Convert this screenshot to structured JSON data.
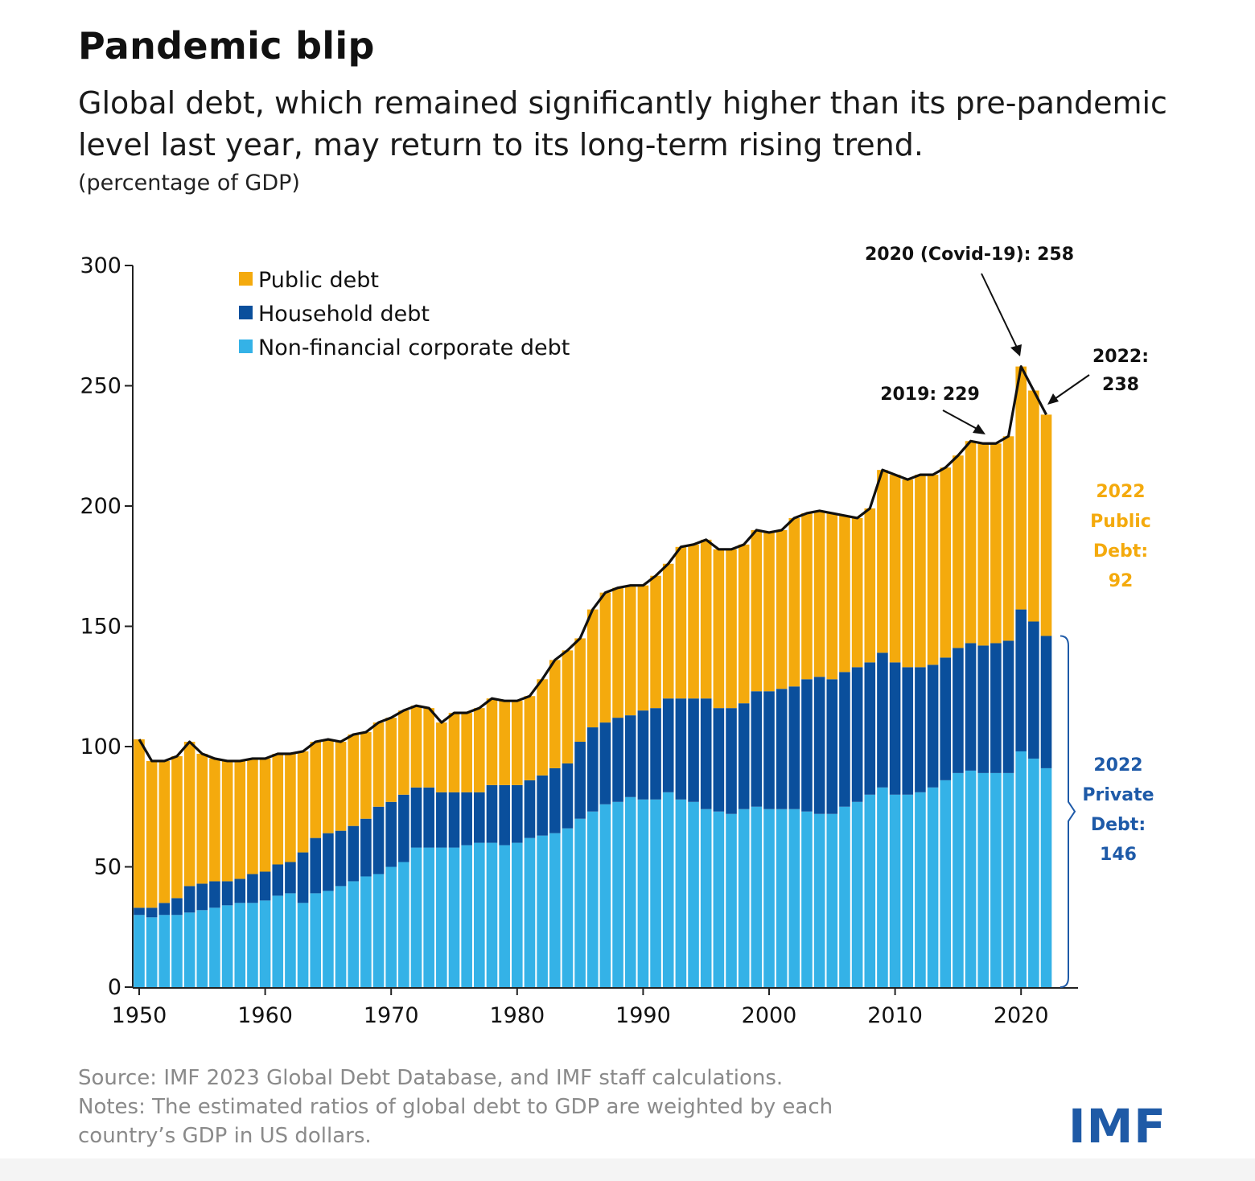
{
  "title": "Pandemic blip",
  "subtitle": "Global debt, which remained significantly higher than its pre-pandemic level last year, may return to its long-term rising trend.",
  "units": "(percentage of GDP)",
  "footer": {
    "source": "Source: IMF 2023 Global Debt Database, and IMF staff calculations.",
    "notes": "Notes: The estimated ratios of global debt to GDP are weighted by each country’s GDP in US dollars."
  },
  "logo": "IMF",
  "colors": {
    "public": "#f4aa0d",
    "household": "#0a4f9c",
    "corporate": "#34b2e7",
    "total_line": "#111111",
    "private_text": "#1e5aa8"
  },
  "annotations": {
    "covid": "2020 (Covid-19): 258",
    "y2019": "2019: 229",
    "y2022_line1": "2022:",
    "y2022_line2": "238",
    "public_lines": [
      "2022",
      "Public",
      "Debt:",
      "92"
    ],
    "private_lines": [
      "2022",
      "Private",
      "Debt:",
      "146"
    ]
  },
  "chart_data": {
    "type": "bar",
    "stacked": true,
    "ylim": [
      0,
      300
    ],
    "yticks": [
      0,
      50,
      100,
      150,
      200,
      250,
      300
    ],
    "xticks": [
      1950,
      1960,
      1970,
      1980,
      1990,
      2000,
      2010,
      2020
    ],
    "legend_position": "top-left",
    "grid": false,
    "x": [
      1950,
      1951,
      1952,
      1953,
      1954,
      1955,
      1956,
      1957,
      1958,
      1959,
      1960,
      1961,
      1962,
      1963,
      1964,
      1965,
      1966,
      1967,
      1968,
      1969,
      1970,
      1971,
      1972,
      1973,
      1974,
      1975,
      1976,
      1977,
      1978,
      1979,
      1980,
      1981,
      1982,
      1983,
      1984,
      1985,
      1986,
      1987,
      1988,
      1989,
      1990,
      1991,
      1992,
      1993,
      1994,
      1995,
      1996,
      1997,
      1998,
      1999,
      2000,
      2001,
      2002,
      2003,
      2004,
      2005,
      2006,
      2007,
      2008,
      2009,
      2010,
      2011,
      2012,
      2013,
      2014,
      2015,
      2016,
      2017,
      2018,
      2019,
      2020,
      2021,
      2022
    ],
    "series": [
      {
        "name": "Non-financial corporate debt",
        "values": [
          30,
          29,
          30,
          30,
          31,
          32,
          33,
          34,
          35,
          35,
          36,
          38,
          39,
          35,
          39,
          40,
          42,
          44,
          46,
          47,
          50,
          52,
          58,
          58,
          58,
          58,
          59,
          60,
          60,
          59,
          60,
          62,
          63,
          64,
          66,
          70,
          73,
          76,
          77,
          79,
          78,
          78,
          81,
          78,
          77,
          74,
          73,
          72,
          74,
          75,
          74,
          74,
          74,
          73,
          72,
          72,
          75,
          77,
          80,
          83,
          80,
          80,
          81,
          83,
          86,
          89,
          90,
          89,
          89,
          89,
          98,
          95,
          91
        ]
      },
      {
        "name": "Household debt",
        "values": [
          3,
          4,
          5,
          7,
          11,
          11,
          11,
          10,
          10,
          12,
          12,
          13,
          13,
          21,
          23,
          24,
          23,
          23,
          24,
          28,
          27,
          28,
          25,
          25,
          23,
          23,
          22,
          21,
          24,
          25,
          24,
          24,
          25,
          27,
          27,
          32,
          35,
          34,
          35,
          34,
          37,
          38,
          39,
          42,
          43,
          46,
          43,
          44,
          44,
          48,
          49,
          50,
          51,
          55,
          57,
          56,
          56,
          56,
          55,
          56,
          55,
          53,
          52,
          51,
          51,
          52,
          53,
          53,
          54,
          55,
          59,
          57,
          55
        ]
      },
      {
        "name": "Public debt",
        "values": [
          70,
          61,
          59,
          59,
          60,
          54,
          51,
          50,
          49,
          48,
          47,
          46,
          45,
          42,
          40,
          39,
          37,
          38,
          36,
          35,
          35,
          35,
          34,
          33,
          29,
          33,
          33,
          35,
          36,
          35,
          35,
          35,
          40,
          45,
          47,
          43,
          49,
          54,
          54,
          54,
          52,
          55,
          56,
          63,
          64,
          66,
          66,
          66,
          66,
          67,
          66,
          66,
          70,
          69,
          69,
          69,
          65,
          62,
          64,
          76,
          78,
          78,
          80,
          79,
          79,
          80,
          84,
          84,
          83,
          85,
          101,
          96,
          92
        ]
      }
    ],
    "total": [
      103,
      94,
      94,
      96,
      102,
      97,
      95,
      94,
      94,
      95,
      95,
      97,
      97,
      98,
      102,
      103,
      102,
      105,
      106,
      110,
      112,
      115,
      117,
      116,
      110,
      114,
      114,
      116,
      120,
      119,
      119,
      121,
      128,
      136,
      140,
      145,
      157,
      164,
      166,
      167,
      167,
      171,
      176,
      183,
      184,
      186,
      182,
      182,
      184,
      190,
      189,
      190,
      195,
      197,
      198,
      197,
      196,
      195,
      199,
      215,
      213,
      211,
      213,
      213,
      216,
      221,
      227,
      226,
      226,
      229,
      258,
      248,
      238
    ],
    "annotations": [
      {
        "year": 2020,
        "value": 258,
        "label": "2020 (Covid-19): 258"
      },
      {
        "year": 2019,
        "value": 229,
        "label": "2019: 229"
      },
      {
        "year": 2022,
        "value": 238,
        "label": "2022: 238"
      },
      {
        "label": "2022 Public Debt: 92",
        "value": 92
      },
      {
        "label": "2022 Private Debt: 146",
        "value": 146
      }
    ]
  }
}
